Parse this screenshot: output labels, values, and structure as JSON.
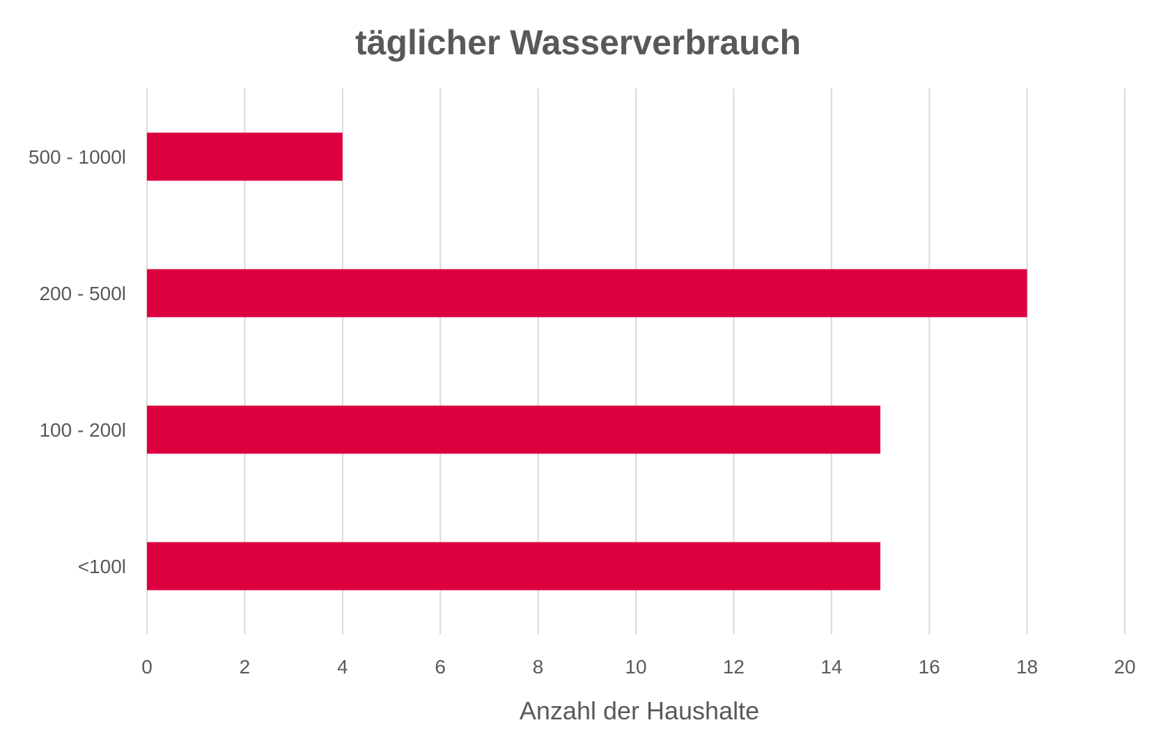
{
  "chart_data": {
    "type": "bar",
    "orientation": "horizontal",
    "title": "täglicher Wasserverbrauch",
    "xlabel": "Anzahl der Haushalte",
    "ylabel": "",
    "categories": [
      "<100l",
      "100 - 200l",
      "200 - 500l",
      "500 - 1000l"
    ],
    "values": [
      15,
      15,
      18,
      4
    ],
    "xlim": [
      0,
      20
    ],
    "xticks": [
      "0",
      "2",
      "4",
      "6",
      "8",
      "10",
      "12",
      "14",
      "16",
      "18",
      "20"
    ],
    "grid": true,
    "legend": "none",
    "bar_color": "#DC0040"
  }
}
